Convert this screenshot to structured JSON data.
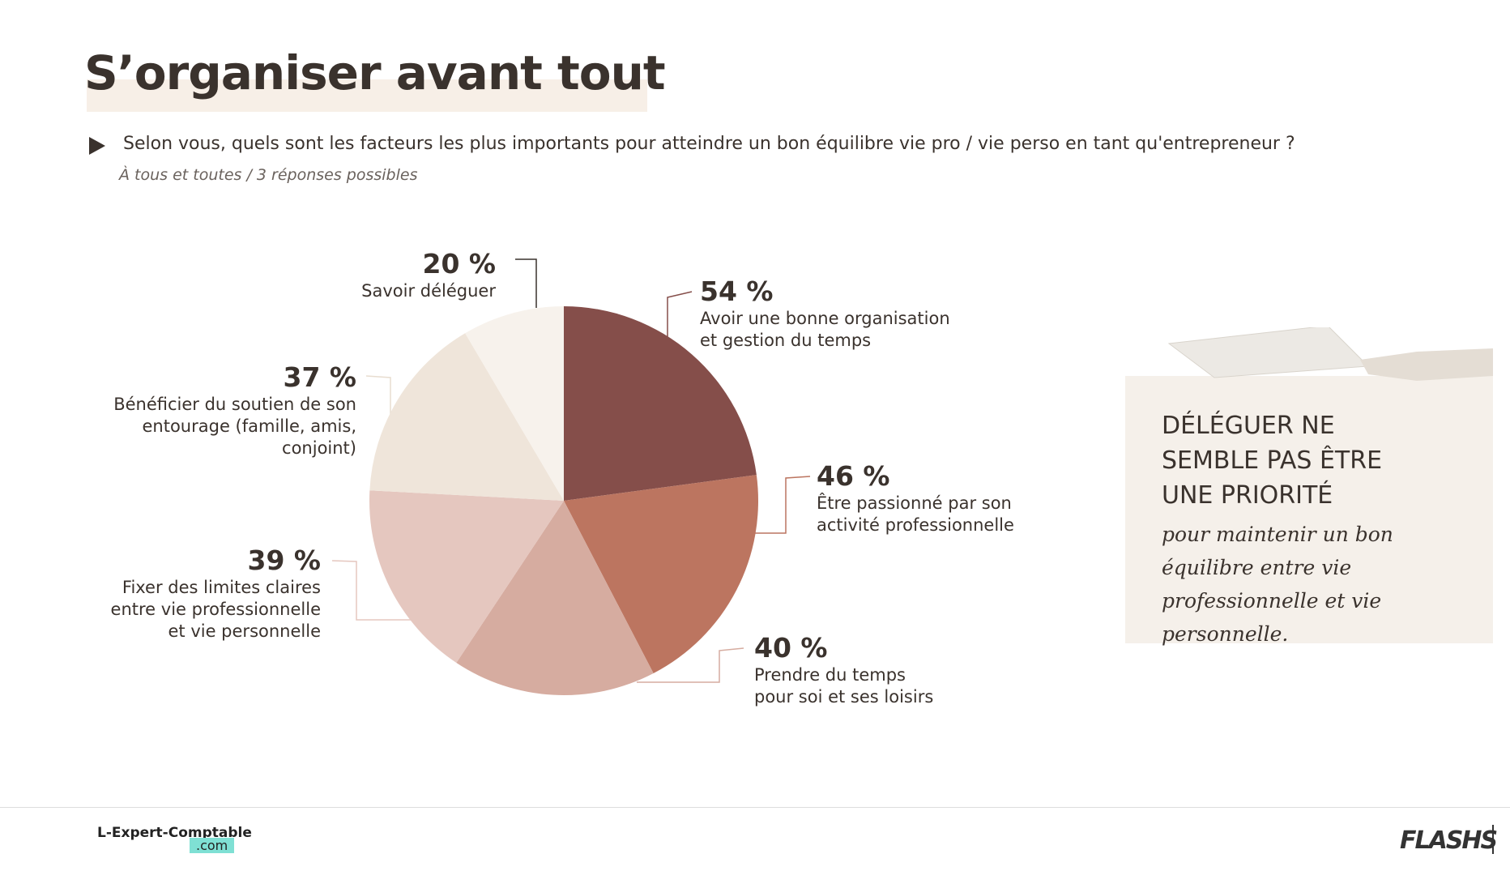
{
  "chart_data": {
    "type": "pie",
    "title": "S’organiser avant tout",
    "subtitle": "Selon vous, quels sont les facteurs les plus importants pour atteindre un bon équilibre vie pro / vie perso en tant qu'entrepreneur ?",
    "note": "À tous et toutes / 3 réponses possibles",
    "categories": [
      "Avoir une bonne organisation et gestion du temps",
      "Être passionné par son activité professionnelle",
      "Prendre du temps pour soi et ses loisirs",
      "Fixer des limites claires entre vie professionnelle et vie personnelle",
      "Bénéficier du soutien de son entourage (famille, amis, conjoint)",
      "Savoir déléguer"
    ],
    "values": [
      54,
      46,
      40,
      39,
      37,
      20
    ],
    "value_labels": [
      "54 %",
      "46 %",
      "40 %",
      "39 %",
      "37 %",
      "20 %"
    ],
    "colors": [
      "#854e4a",
      "#bc7560",
      "#d6aca0",
      "#e5c7bf",
      "#efe5da",
      "#f7f2ec"
    ]
  },
  "callout": {
    "heading": "DÉLÉGUER NE SEMBLE PAS ÊTRE UNE PRIORITÉ",
    "body": "pour maintenir un bon équilibre entre vie professionnelle et vie personnelle."
  },
  "footer": {
    "brand": "L-Expert-Comptable",
    "brand_suffix": ".com",
    "logo": "FLASHS"
  }
}
